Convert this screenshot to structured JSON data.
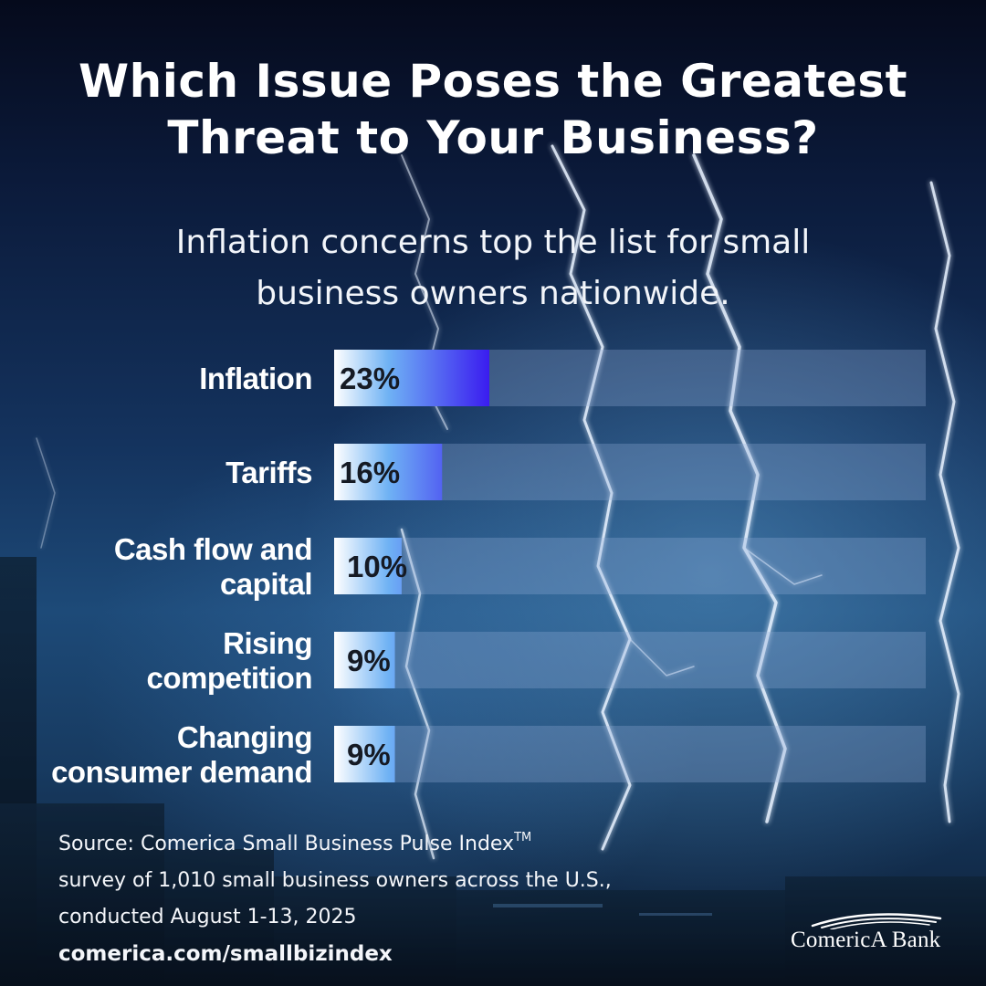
{
  "title": {
    "line1": "Which Issue Poses the Greatest",
    "line2": "Threat to Your Business?"
  },
  "subtitle": {
    "line1": "Inflation concerns top the list for small",
    "line2": "business owners nationwide."
  },
  "chart_data": {
    "type": "bar",
    "orientation": "horizontal",
    "categories": [
      [
        "Inflation"
      ],
      [
        "Tariffs"
      ],
      [
        "Cash flow and",
        "capital"
      ],
      [
        "Rising",
        "competition"
      ],
      [
        "Changing",
        "consumer demand"
      ]
    ],
    "values": [
      23,
      16,
      10,
      9,
      9
    ],
    "value_labels": [
      "23%",
      "16%",
      "10%",
      "9%",
      "9%"
    ],
    "xlim": [
      0,
      100
    ],
    "grid": false,
    "legend": "none",
    "colors": {
      "bar_start": "#ffffff",
      "bar_mid": "#6fb2f4",
      "bar_end": "#3a1cf0",
      "track": "rgba(150,175,220,0.30)"
    }
  },
  "source": {
    "line1": "Source: Comerica Small Business Pulse Index",
    "tm": "TM",
    "line2": "survey of 1,010 small business owners across the U.S.,",
    "line3": "conducted August 1-13, 2025",
    "url": "comerica.com/smallbizindex"
  },
  "logo": {
    "name": "logo-comerica-bank",
    "text": "ComericA Bank",
    "color": "#ffffff"
  }
}
